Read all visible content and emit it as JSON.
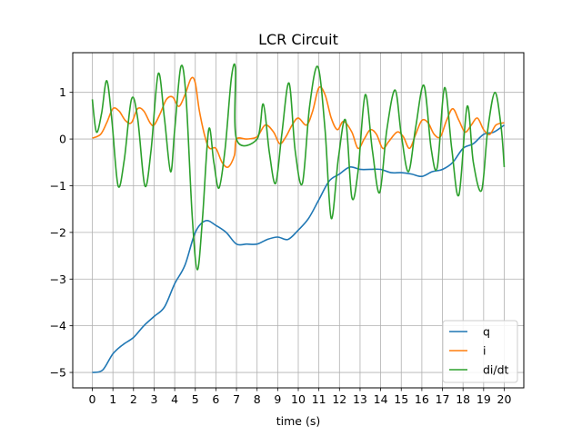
{
  "chart_data": {
    "type": "line",
    "title": "LCR Circuit",
    "xlabel": "time (s)",
    "ylabel": "",
    "xlim": [
      -0.95,
      20.95
    ],
    "ylim": [
      -5.33,
      1.85
    ],
    "xticks": [
      0,
      1,
      2,
      3,
      4,
      5,
      6,
      7,
      8,
      9,
      10,
      11,
      12,
      13,
      14,
      15,
      16,
      17,
      18,
      19,
      20
    ],
    "yticks": [
      -5,
      -4,
      -3,
      -2,
      -1,
      0,
      1
    ],
    "ytick_labels": [
      "−5",
      "−4",
      "−3",
      "−2",
      "−1",
      "0",
      "1"
    ],
    "grid": true,
    "legend_position": "lower right",
    "series": [
      {
        "name": "q",
        "color": "#1f77b4",
        "points": [
          [
            0,
            -5.0
          ],
          [
            0.5,
            -4.95
          ],
          [
            1,
            -4.6
          ],
          [
            1.5,
            -4.4
          ],
          [
            2,
            -4.25
          ],
          [
            2.5,
            -4.0
          ],
          [
            3,
            -3.8
          ],
          [
            3.5,
            -3.6
          ],
          [
            4,
            -3.1
          ],
          [
            4.5,
            -2.7
          ],
          [
            5,
            -2.0
          ],
          [
            5.5,
            -1.75
          ],
          [
            6,
            -1.85
          ],
          [
            6.5,
            -2.0
          ],
          [
            7,
            -2.25
          ],
          [
            7.5,
            -2.25
          ],
          [
            8,
            -2.25
          ],
          [
            8.5,
            -2.15
          ],
          [
            9,
            -2.1
          ],
          [
            9.5,
            -2.15
          ],
          [
            10,
            -1.95
          ],
          [
            10.5,
            -1.7
          ],
          [
            11,
            -1.3
          ],
          [
            11.5,
            -0.9
          ],
          [
            12,
            -0.75
          ],
          [
            12.5,
            -0.6
          ],
          [
            13,
            -0.65
          ],
          [
            13.5,
            -0.65
          ],
          [
            14,
            -0.65
          ],
          [
            14.5,
            -0.72
          ],
          [
            15,
            -0.72
          ],
          [
            15.5,
            -0.75
          ],
          [
            16,
            -0.8
          ],
          [
            16.5,
            -0.7
          ],
          [
            17,
            -0.65
          ],
          [
            17.5,
            -0.5
          ],
          [
            18,
            -0.2
          ],
          [
            18.5,
            -0.1
          ],
          [
            19,
            0.1
          ],
          [
            19.5,
            0.15
          ],
          [
            20,
            0.3
          ]
        ]
      },
      {
        "name": "i",
        "color": "#ff7f0e",
        "points": [
          [
            0,
            0.02
          ],
          [
            0.4,
            0.1
          ],
          [
            0.7,
            0.35
          ],
          [
            1,
            0.65
          ],
          [
            1.3,
            0.6
          ],
          [
            1.6,
            0.4
          ],
          [
            1.9,
            0.35
          ],
          [
            2.2,
            0.65
          ],
          [
            2.5,
            0.6
          ],
          [
            2.8,
            0.35
          ],
          [
            3,
            0.3
          ],
          [
            3.3,
            0.55
          ],
          [
            3.6,
            0.85
          ],
          [
            3.9,
            0.9
          ],
          [
            4.2,
            0.7
          ],
          [
            4.5,
            0.95
          ],
          [
            4.8,
            1.3
          ],
          [
            5,
            1.2
          ],
          [
            5.2,
            0.6
          ],
          [
            5.5,
            0.0
          ],
          [
            5.7,
            -0.2
          ],
          [
            6,
            -0.2
          ],
          [
            6.3,
            -0.5
          ],
          [
            6.6,
            -0.6
          ],
          [
            6.9,
            -0.35
          ],
          [
            7,
            0.0
          ],
          [
            7.5,
            0.0
          ],
          [
            8,
            0.05
          ],
          [
            8.4,
            0.3
          ],
          [
            8.8,
            0.15
          ],
          [
            9.1,
            -0.1
          ],
          [
            9.4,
            0.05
          ],
          [
            9.7,
            0.3
          ],
          [
            10,
            0.45
          ],
          [
            10.4,
            0.3
          ],
          [
            10.7,
            0.6
          ],
          [
            11,
            1.1
          ],
          [
            11.3,
            0.95
          ],
          [
            11.6,
            0.45
          ],
          [
            11.9,
            0.2
          ],
          [
            12.2,
            0.38
          ],
          [
            12.6,
            0.15
          ],
          [
            12.9,
            -0.2
          ],
          [
            13.2,
            0.0
          ],
          [
            13.5,
            0.2
          ],
          [
            13.8,
            0.1
          ],
          [
            14.1,
            -0.2
          ],
          [
            14.4,
            -0.05
          ],
          [
            14.8,
            0.15
          ],
          [
            15.1,
            0.05
          ],
          [
            15.4,
            -0.2
          ],
          [
            15.7,
            0.1
          ],
          [
            16,
            0.4
          ],
          [
            16.3,
            0.35
          ],
          [
            16.6,
            0.1
          ],
          [
            16.9,
            0.05
          ],
          [
            17.2,
            0.4
          ],
          [
            17.5,
            0.65
          ],
          [
            17.8,
            0.4
          ],
          [
            18.1,
            0.15
          ],
          [
            18.4,
            0.3
          ],
          [
            18.7,
            0.45
          ],
          [
            19,
            0.2
          ],
          [
            19.3,
            0.1
          ],
          [
            19.6,
            0.3
          ],
          [
            20,
            0.35
          ]
        ]
      },
      {
        "name": "di/dt",
        "color": "#2ca02c",
        "points": [
          [
            0,
            0.85
          ],
          [
            0.2,
            0.15
          ],
          [
            0.45,
            0.55
          ],
          [
            0.7,
            1.25
          ],
          [
            0.95,
            0.4
          ],
          [
            1.25,
            -1.0
          ],
          [
            1.55,
            -0.45
          ],
          [
            1.9,
            0.85
          ],
          [
            2.2,
            0.45
          ],
          [
            2.55,
            -1.0
          ],
          [
            2.85,
            -0.25
          ],
          [
            3.2,
            1.4
          ],
          [
            3.5,
            0.45
          ],
          [
            3.8,
            -0.7
          ],
          [
            4.0,
            0.2
          ],
          [
            4.3,
            1.55
          ],
          [
            4.55,
            0.9
          ],
          [
            4.85,
            -1.65
          ],
          [
            5.1,
            -2.8
          ],
          [
            5.35,
            -1.7
          ],
          [
            5.65,
            0.2
          ],
          [
            5.9,
            -0.5
          ],
          [
            6.15,
            -1.05
          ],
          [
            6.45,
            -0.2
          ],
          [
            6.75,
            1.3
          ],
          [
            6.95,
            1.5
          ],
          [
            7.0,
            0.0
          ],
          [
            8.0,
            0.0
          ],
          [
            8.3,
            0.75
          ],
          [
            8.6,
            -0.3
          ],
          [
            8.9,
            -0.95
          ],
          [
            9.2,
            0.1
          ],
          [
            9.55,
            1.2
          ],
          [
            9.85,
            -0.25
          ],
          [
            10.2,
            -0.95
          ],
          [
            10.55,
            0.7
          ],
          [
            10.95,
            1.55
          ],
          [
            11.3,
            0.2
          ],
          [
            11.6,
            -1.7
          ],
          [
            11.95,
            -0.4
          ],
          [
            12.3,
            0.4
          ],
          [
            12.6,
            -1.25
          ],
          [
            12.9,
            -0.7
          ],
          [
            13.25,
            0.95
          ],
          [
            13.6,
            -0.25
          ],
          [
            13.95,
            -1.15
          ],
          [
            14.3,
            0.2
          ],
          [
            14.7,
            1.05
          ],
          [
            15.0,
            0.1
          ],
          [
            15.35,
            -0.7
          ],
          [
            15.7,
            0.25
          ],
          [
            16.1,
            1.15
          ],
          [
            16.45,
            -0.2
          ],
          [
            16.75,
            -0.6
          ],
          [
            17.1,
            1.1
          ],
          [
            17.45,
            -0.2
          ],
          [
            17.8,
            -1.2
          ],
          [
            18.2,
            0.7
          ],
          [
            18.5,
            -0.5
          ],
          [
            18.9,
            -1.1
          ],
          [
            19.2,
            0.2
          ],
          [
            19.55,
            1.0
          ],
          [
            19.85,
            0.25
          ],
          [
            20.0,
            -0.6
          ]
        ]
      }
    ]
  }
}
